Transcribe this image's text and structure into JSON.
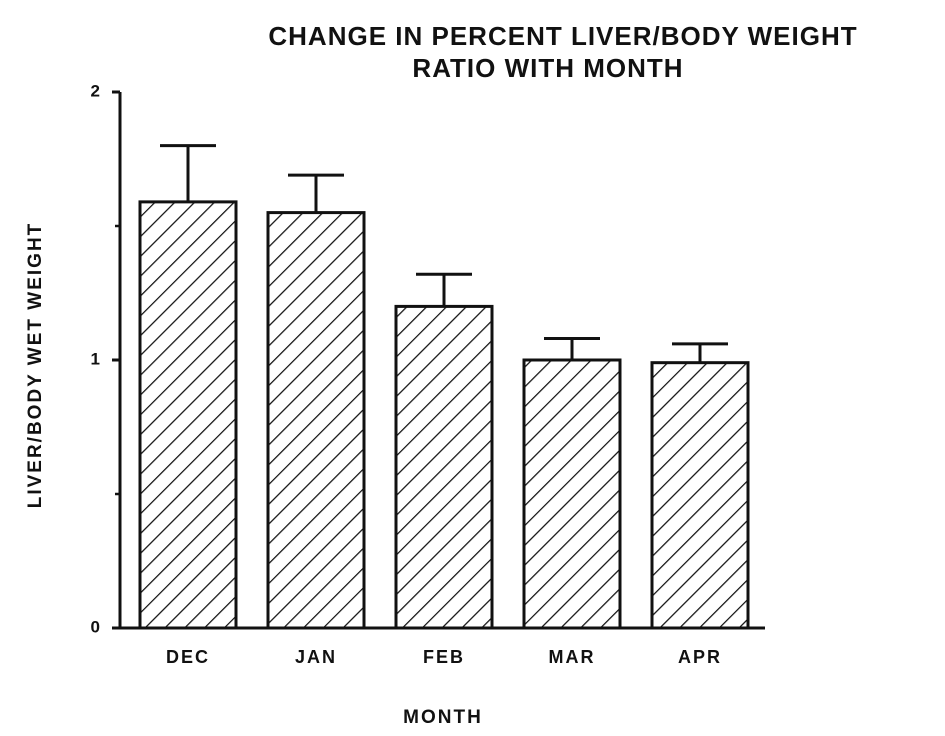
{
  "chart_data": {
    "type": "bar",
    "title": [
      "CHANGE IN PERCENT LIVER/BODY WEIGHT",
      "RATIO WITH MONTH"
    ],
    "x_label": "MONTH",
    "y_label": "LIVER/BODY WET WEIGHT",
    "categories": [
      "DEC",
      "JAN",
      "FEB",
      "MAR",
      "APR"
    ],
    "values": [
      1.59,
      1.55,
      1.2,
      1.0,
      0.99
    ],
    "errors": [
      0.21,
      0.14,
      0.12,
      0.08,
      0.07
    ],
    "color": "#111111",
    "hatch": true,
    "ylim": [
      0,
      2
    ],
    "yticks": [
      0,
      1,
      2
    ],
    "yminor_ticks": [
      0.5,
      1.5
    ]
  }
}
